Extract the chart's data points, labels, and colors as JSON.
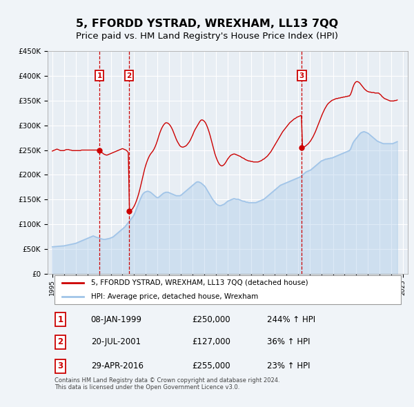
{
  "title": "5, FFORDD YSTRAD, WREXHAM, LL13 7QQ",
  "subtitle": "Price paid vs. HM Land Registry's House Price Index (HPI)",
  "title_fontsize": 11.5,
  "subtitle_fontsize": 9.5,
  "ylim": [
    0,
    450000
  ],
  "yticks": [
    0,
    50000,
    100000,
    150000,
    200000,
    250000,
    300000,
    350000,
    400000,
    450000
  ],
  "ytick_labels": [
    "£0",
    "£50K",
    "£100K",
    "£150K",
    "£200K",
    "£250K",
    "£300K",
    "£350K",
    "£400K",
    "£450K"
  ],
  "xlim_start": 1994.6,
  "xlim_end": 2025.4,
  "property_color": "#cc0000",
  "hpi_color": "#a0c4e8",
  "transaction_line_color": "#cc0000",
  "marker_box_color": "#cc0000",
  "background_color": "#f0f4f8",
  "plot_bg_color": "#e8eef4",
  "grid_color": "#ffffff",
  "legend_label_property": "5, FFORDD YSTRAD, WREXHAM, LL13 7QQ (detached house)",
  "legend_label_hpi": "HPI: Average price, detached house, Wrexham",
  "transactions": [
    {
      "num": 1,
      "date": "08-JAN-1999",
      "price": 250000,
      "hpi_change": "244%",
      "year": 1999.03,
      "price_y": 250000
    },
    {
      "num": 2,
      "date": "20-JUL-2001",
      "price": 127000,
      "hpi_change": "36%",
      "year": 2001.55,
      "price_y": 127000
    },
    {
      "num": 3,
      "date": "29-APR-2016",
      "price": 255000,
      "hpi_change": "23%",
      "year": 2016.33,
      "price_y": 255000
    }
  ],
  "footer_text": "Contains HM Land Registry data © Crown copyright and database right 2024.\nThis data is licensed under the Open Government Licence v3.0.",
  "hpi_data_x": [
    1995.0,
    1995.1,
    1995.2,
    1995.3,
    1995.4,
    1995.5,
    1995.6,
    1995.7,
    1995.8,
    1995.9,
    1996.0,
    1996.1,
    1996.2,
    1996.3,
    1996.4,
    1996.5,
    1996.6,
    1996.7,
    1996.8,
    1996.9,
    1997.0,
    1997.1,
    1997.2,
    1997.3,
    1997.4,
    1997.5,
    1997.6,
    1997.7,
    1997.8,
    1997.9,
    1998.0,
    1998.1,
    1998.2,
    1998.3,
    1998.4,
    1998.5,
    1998.6,
    1998.7,
    1998.8,
    1998.9,
    1999.0,
    1999.1,
    1999.2,
    1999.3,
    1999.4,
    1999.5,
    1999.6,
    1999.7,
    1999.8,
    1999.9,
    2000.0,
    2000.1,
    2000.2,
    2000.3,
    2000.4,
    2000.5,
    2000.6,
    2000.7,
    2000.8,
    2000.9,
    2001.0,
    2001.1,
    2001.2,
    2001.3,
    2001.4,
    2001.5,
    2001.6,
    2001.7,
    2001.8,
    2001.9,
    2002.0,
    2002.1,
    2002.2,
    2002.3,
    2002.4,
    2002.5,
    2002.6,
    2002.7,
    2002.8,
    2002.9,
    2003.0,
    2003.1,
    2003.2,
    2003.3,
    2003.4,
    2003.5,
    2003.6,
    2003.7,
    2003.8,
    2003.9,
    2004.0,
    2004.1,
    2004.2,
    2004.3,
    2004.4,
    2004.5,
    2004.6,
    2004.7,
    2004.8,
    2004.9,
    2005.0,
    2005.1,
    2005.2,
    2005.3,
    2005.4,
    2005.5,
    2005.6,
    2005.7,
    2005.8,
    2005.9,
    2006.0,
    2006.1,
    2006.2,
    2006.3,
    2006.4,
    2006.5,
    2006.6,
    2006.7,
    2006.8,
    2006.9,
    2007.0,
    2007.1,
    2007.2,
    2007.3,
    2007.4,
    2007.5,
    2007.6,
    2007.7,
    2007.8,
    2007.9,
    2008.0,
    2008.1,
    2008.2,
    2008.3,
    2008.4,
    2008.5,
    2008.6,
    2008.7,
    2008.8,
    2008.9,
    2009.0,
    2009.1,
    2009.2,
    2009.3,
    2009.4,
    2009.5,
    2009.6,
    2009.7,
    2009.8,
    2009.9,
    2010.0,
    2010.1,
    2010.2,
    2010.3,
    2010.4,
    2010.5,
    2010.6,
    2010.7,
    2010.8,
    2010.9,
    2011.0,
    2011.1,
    2011.2,
    2011.3,
    2011.4,
    2011.5,
    2011.6,
    2011.7,
    2011.8,
    2011.9,
    2012.0,
    2012.1,
    2012.2,
    2012.3,
    2012.4,
    2012.5,
    2012.6,
    2012.7,
    2012.8,
    2012.9,
    2013.0,
    2013.1,
    2013.2,
    2013.3,
    2013.4,
    2013.5,
    2013.6,
    2013.7,
    2013.8,
    2013.9,
    2014.0,
    2014.1,
    2014.2,
    2014.3,
    2014.4,
    2014.5,
    2014.6,
    2014.7,
    2014.8,
    2014.9,
    2015.0,
    2015.1,
    2015.2,
    2015.3,
    2015.4,
    2015.5,
    2015.6,
    2015.7,
    2015.8,
    2015.9,
    2016.0,
    2016.1,
    2016.2,
    2016.3,
    2016.4,
    2016.5,
    2016.6,
    2016.7,
    2016.8,
    2016.9,
    2017.0,
    2017.1,
    2017.2,
    2017.3,
    2017.4,
    2017.5,
    2017.6,
    2017.7,
    2017.8,
    2017.9,
    2018.0,
    2018.1,
    2018.2,
    2018.3,
    2018.4,
    2018.5,
    2018.6,
    2018.7,
    2018.8,
    2018.9,
    2019.0,
    2019.1,
    2019.2,
    2019.3,
    2019.4,
    2019.5,
    2019.6,
    2019.7,
    2019.8,
    2019.9,
    2020.0,
    2020.1,
    2020.2,
    2020.3,
    2020.4,
    2020.5,
    2020.6,
    2020.7,
    2020.8,
    2020.9,
    2021.0,
    2021.1,
    2021.2,
    2021.3,
    2021.4,
    2021.5,
    2021.6,
    2021.7,
    2021.8,
    2021.9,
    2022.0,
    2022.1,
    2022.2,
    2022.3,
    2022.4,
    2022.5,
    2022.6,
    2022.7,
    2022.8,
    2022.9,
    2023.0,
    2023.1,
    2023.2,
    2023.3,
    2023.4,
    2023.5,
    2023.6,
    2023.7,
    2023.8,
    2023.9,
    2024.0,
    2024.1,
    2024.2,
    2024.3,
    2024.4,
    2024.5
  ],
  "hpi_data_y": [
    55000,
    55200,
    55400,
    55600,
    55800,
    56000,
    56200,
    56400,
    56600,
    56800,
    57000,
    57500,
    58000,
    58500,
    59000,
    59500,
    60000,
    60500,
    61000,
    61500,
    62000,
    63000,
    64000,
    65000,
    66000,
    67000,
    68000,
    69000,
    70000,
    71000,
    72000,
    73000,
    74000,
    75000,
    76000,
    77000,
    76000,
    75000,
    74000,
    73500,
    73000,
    72000,
    71000,
    70500,
    70000,
    70000,
    70500,
    71000,
    71500,
    72000,
    73000,
    74000,
    75000,
    77000,
    79000,
    81000,
    83000,
    85000,
    87000,
    89000,
    91000,
    93000,
    95000,
    98000,
    101000,
    104000,
    107000,
    110000,
    113000,
    116000,
    120000,
    126000,
    132000,
    138000,
    144000,
    150000,
    155000,
    160000,
    163000,
    165000,
    166000,
    167000,
    167000,
    166000,
    165000,
    163000,
    161000,
    159000,
    157000,
    155000,
    154000,
    155000,
    157000,
    159000,
    161000,
    163000,
    164000,
    165000,
    165000,
    165000,
    164000,
    163000,
    162000,
    161000,
    160000,
    159000,
    158000,
    158000,
    158000,
    158000,
    159000,
    161000,
    163000,
    165000,
    167000,
    169000,
    171000,
    173000,
    175000,
    177000,
    179000,
    181000,
    183000,
    185000,
    186000,
    186000,
    185000,
    184000,
    182000,
    180000,
    178000,
    175000,
    171000,
    167000,
    163000,
    159000,
    155000,
    151000,
    148000,
    145000,
    142000,
    140000,
    139000,
    138000,
    138000,
    139000,
    140000,
    141000,
    143000,
    145000,
    147000,
    148000,
    149000,
    150000,
    151000,
    152000,
    152000,
    151000,
    151000,
    151000,
    150000,
    149000,
    148000,
    147000,
    147000,
    146000,
    145000,
    145000,
    144000,
    144000,
    144000,
    144000,
    144000,
    144000,
    144000,
    145000,
    146000,
    147000,
    148000,
    149000,
    150000,
    151000,
    153000,
    155000,
    157000,
    159000,
    161000,
    163000,
    165000,
    167000,
    169000,
    171000,
    173000,
    175000,
    177000,
    179000,
    180000,
    181000,
    182000,
    183000,
    184000,
    185000,
    186000,
    187000,
    188000,
    189000,
    190000,
    191000,
    192000,
    193000,
    194000,
    195000,
    196000,
    198000,
    200000,
    202000,
    204000,
    206000,
    207000,
    208000,
    209000,
    210000,
    212000,
    214000,
    216000,
    218000,
    220000,
    222000,
    224000,
    226000,
    228000,
    229000,
    230000,
    231000,
    232000,
    232000,
    233000,
    233000,
    234000,
    234000,
    235000,
    236000,
    237000,
    238000,
    239000,
    240000,
    241000,
    242000,
    243000,
    244000,
    245000,
    246000,
    247000,
    248000,
    249000,
    252000,
    258000,
    264000,
    268000,
    271000,
    274000,
    277000,
    280000,
    283000,
    285000,
    286000,
    287000,
    287000,
    286000,
    285000,
    284000,
    282000,
    280000,
    278000,
    276000,
    274000,
    272000,
    270000,
    268000,
    267000,
    266000,
    265000,
    264000,
    263000,
    263000,
    263000,
    263000,
    263000,
    263000,
    263000,
    263000,
    263000,
    264000,
    265000,
    266000,
    267000
  ],
  "prop_data_x": [
    1995.0,
    1995.1,
    1995.2,
    1995.3,
    1995.4,
    1995.5,
    1995.6,
    1995.7,
    1995.8,
    1995.9,
    1996.0,
    1996.1,
    1996.2,
    1996.3,
    1996.4,
    1996.5,
    1996.6,
    1996.7,
    1996.8,
    1996.9,
    1997.0,
    1997.1,
    1997.2,
    1997.3,
    1997.4,
    1997.5,
    1997.6,
    1997.7,
    1997.8,
    1997.9,
    1998.0,
    1998.1,
    1998.2,
    1998.3,
    1998.4,
    1998.5,
    1998.6,
    1998.7,
    1998.8,
    1998.9,
    1999.0,
    1999.1,
    1999.2,
    1999.3,
    1999.4,
    1999.5,
    1999.6,
    1999.7,
    1999.8,
    1999.9,
    2000.0,
    2000.1,
    2000.2,
    2000.3,
    2000.4,
    2000.5,
    2000.6,
    2000.7,
    2000.8,
    2000.9,
    2001.0,
    2001.1,
    2001.2,
    2001.3,
    2001.4,
    2001.5,
    2001.6,
    2001.7,
    2001.8,
    2001.9,
    2002.0,
    2002.1,
    2002.2,
    2002.3,
    2002.4,
    2002.5,
    2002.6,
    2002.7,
    2002.8,
    2002.9,
    2003.0,
    2003.1,
    2003.2,
    2003.3,
    2003.4,
    2003.5,
    2003.6,
    2003.7,
    2003.8,
    2003.9,
    2004.0,
    2004.1,
    2004.2,
    2004.3,
    2004.4,
    2004.5,
    2004.6,
    2004.7,
    2004.8,
    2004.9,
    2005.0,
    2005.1,
    2005.2,
    2005.3,
    2005.4,
    2005.5,
    2005.6,
    2005.7,
    2005.8,
    2005.9,
    2006.0,
    2006.1,
    2006.2,
    2006.3,
    2006.4,
    2006.5,
    2006.6,
    2006.7,
    2006.8,
    2006.9,
    2007.0,
    2007.1,
    2007.2,
    2007.3,
    2007.4,
    2007.5,
    2007.6,
    2007.7,
    2007.8,
    2007.9,
    2008.0,
    2008.1,
    2008.2,
    2008.3,
    2008.4,
    2008.5,
    2008.6,
    2008.7,
    2008.8,
    2008.9,
    2009.0,
    2009.1,
    2009.2,
    2009.3,
    2009.4,
    2009.5,
    2009.6,
    2009.7,
    2009.8,
    2009.9,
    2010.0,
    2010.1,
    2010.2,
    2010.3,
    2010.4,
    2010.5,
    2010.6,
    2010.7,
    2010.8,
    2010.9,
    2011.0,
    2011.1,
    2011.2,
    2011.3,
    2011.4,
    2011.5,
    2011.6,
    2011.7,
    2011.8,
    2011.9,
    2012.0,
    2012.1,
    2012.2,
    2012.3,
    2012.4,
    2012.5,
    2012.6,
    2012.7,
    2012.8,
    2012.9,
    2013.0,
    2013.1,
    2013.2,
    2013.3,
    2013.4,
    2013.5,
    2013.6,
    2013.7,
    2013.8,
    2013.9,
    2014.0,
    2014.1,
    2014.2,
    2014.3,
    2014.4,
    2014.5,
    2014.6,
    2014.7,
    2014.8,
    2014.9,
    2015.0,
    2015.1,
    2015.2,
    2015.3,
    2015.4,
    2015.5,
    2015.6,
    2015.7,
    2015.8,
    2015.9,
    2016.0,
    2016.1,
    2016.2,
    2016.3,
    2016.4,
    2016.5,
    2016.6,
    2016.7,
    2016.8,
    2016.9,
    2017.0,
    2017.1,
    2017.2,
    2017.3,
    2017.4,
    2017.5,
    2017.6,
    2017.7,
    2017.8,
    2017.9,
    2018.0,
    2018.1,
    2018.2,
    2018.3,
    2018.4,
    2018.5,
    2018.6,
    2018.7,
    2018.8,
    2018.9,
    2019.0,
    2019.1,
    2019.2,
    2019.3,
    2019.4,
    2019.5,
    2019.6,
    2019.7,
    2019.8,
    2019.9,
    2020.0,
    2020.1,
    2020.2,
    2020.3,
    2020.4,
    2020.5,
    2020.6,
    2020.7,
    2020.8,
    2020.9,
    2021.0,
    2021.1,
    2021.2,
    2021.3,
    2021.4,
    2021.5,
    2021.6,
    2021.7,
    2021.8,
    2021.9,
    2022.0,
    2022.1,
    2022.2,
    2022.3,
    2022.4,
    2022.5,
    2022.6,
    2022.7,
    2022.8,
    2022.9,
    2023.0,
    2023.1,
    2023.2,
    2023.3,
    2023.4,
    2023.5,
    2023.6,
    2023.7,
    2023.8,
    2023.9,
    2024.0,
    2024.1,
    2024.2,
    2024.3,
    2024.4,
    2024.5
  ],
  "prop_data_y": [
    248000,
    249000,
    250000,
    251000,
    252000,
    251000,
    250000,
    249000,
    249000,
    249000,
    249000,
    250000,
    251000,
    251000,
    251000,
    250000,
    250000,
    249000,
    249000,
    249000,
    249000,
    249000,
    249000,
    249000,
    249000,
    250000,
    250000,
    250000,
    250000,
    250000,
    250000,
    250000,
    250000,
    250000,
    250000,
    250000,
    250000,
    250000,
    250000,
    250000,
    250000,
    248000,
    246000,
    244000,
    242000,
    241000,
    240000,
    240000,
    241000,
    242000,
    243000,
    244000,
    245000,
    246000,
    247000,
    248000,
    249000,
    250000,
    251000,
    252000,
    253000,
    252000,
    251000,
    250000,
    248000,
    245000,
    127000,
    128000,
    130000,
    133000,
    137000,
    142000,
    148000,
    155000,
    163000,
    172000,
    182000,
    192000,
    202000,
    212000,
    220000,
    227000,
    233000,
    238000,
    242000,
    245000,
    248000,
    252000,
    257000,
    263000,
    270000,
    278000,
    285000,
    291000,
    296000,
    300000,
    303000,
    305000,
    305000,
    304000,
    302000,
    299000,
    295000,
    290000,
    284000,
    278000,
    272000,
    267000,
    263000,
    259000,
    257000,
    256000,
    256000,
    257000,
    258000,
    260000,
    263000,
    266000,
    270000,
    275000,
    280000,
    286000,
    291000,
    295000,
    299000,
    303000,
    307000,
    310000,
    311000,
    310000,
    308000,
    305000,
    300000,
    294000,
    287000,
    279000,
    270000,
    261000,
    252000,
    243000,
    236000,
    230000,
    225000,
    221000,
    219000,
    218000,
    219000,
    221000,
    224000,
    228000,
    232000,
    235000,
    238000,
    240000,
    241000,
    242000,
    242000,
    241000,
    240000,
    239000,
    238000,
    237000,
    235000,
    234000,
    233000,
    231000,
    230000,
    229000,
    228000,
    228000,
    227000,
    227000,
    226000,
    226000,
    226000,
    226000,
    226000,
    227000,
    228000,
    229000,
    231000,
    232000,
    234000,
    236000,
    238000,
    241000,
    244000,
    247000,
    251000,
    255000,
    259000,
    263000,
    267000,
    271000,
    275000,
    279000,
    283000,
    287000,
    290000,
    293000,
    296000,
    299000,
    302000,
    305000,
    307000,
    309000,
    311000,
    313000,
    314000,
    316000,
    317000,
    318000,
    319000,
    320000,
    255000,
    256000,
    257000,
    259000,
    261000,
    263000,
    266000,
    269000,
    273000,
    277000,
    282000,
    287000,
    293000,
    299000,
    305000,
    311000,
    317000,
    323000,
    328000,
    333000,
    337000,
    341000,
    344000,
    346000,
    348000,
    350000,
    351000,
    352000,
    353000,
    354000,
    354000,
    355000,
    355000,
    356000,
    356000,
    357000,
    357000,
    358000,
    358000,
    359000,
    359000,
    362000,
    368000,
    376000,
    382000,
    386000,
    388000,
    388000,
    387000,
    385000,
    382000,
    379000,
    376000,
    373000,
    371000,
    369000,
    368000,
    367000,
    367000,
    366000,
    366000,
    366000,
    365000,
    365000,
    365000,
    365000,
    363000,
    361000,
    358000,
    356000,
    354000,
    353000,
    352000,
    351000,
    350000,
    349000,
    349000,
    349000,
    349000,
    350000,
    350000,
    351000
  ]
}
